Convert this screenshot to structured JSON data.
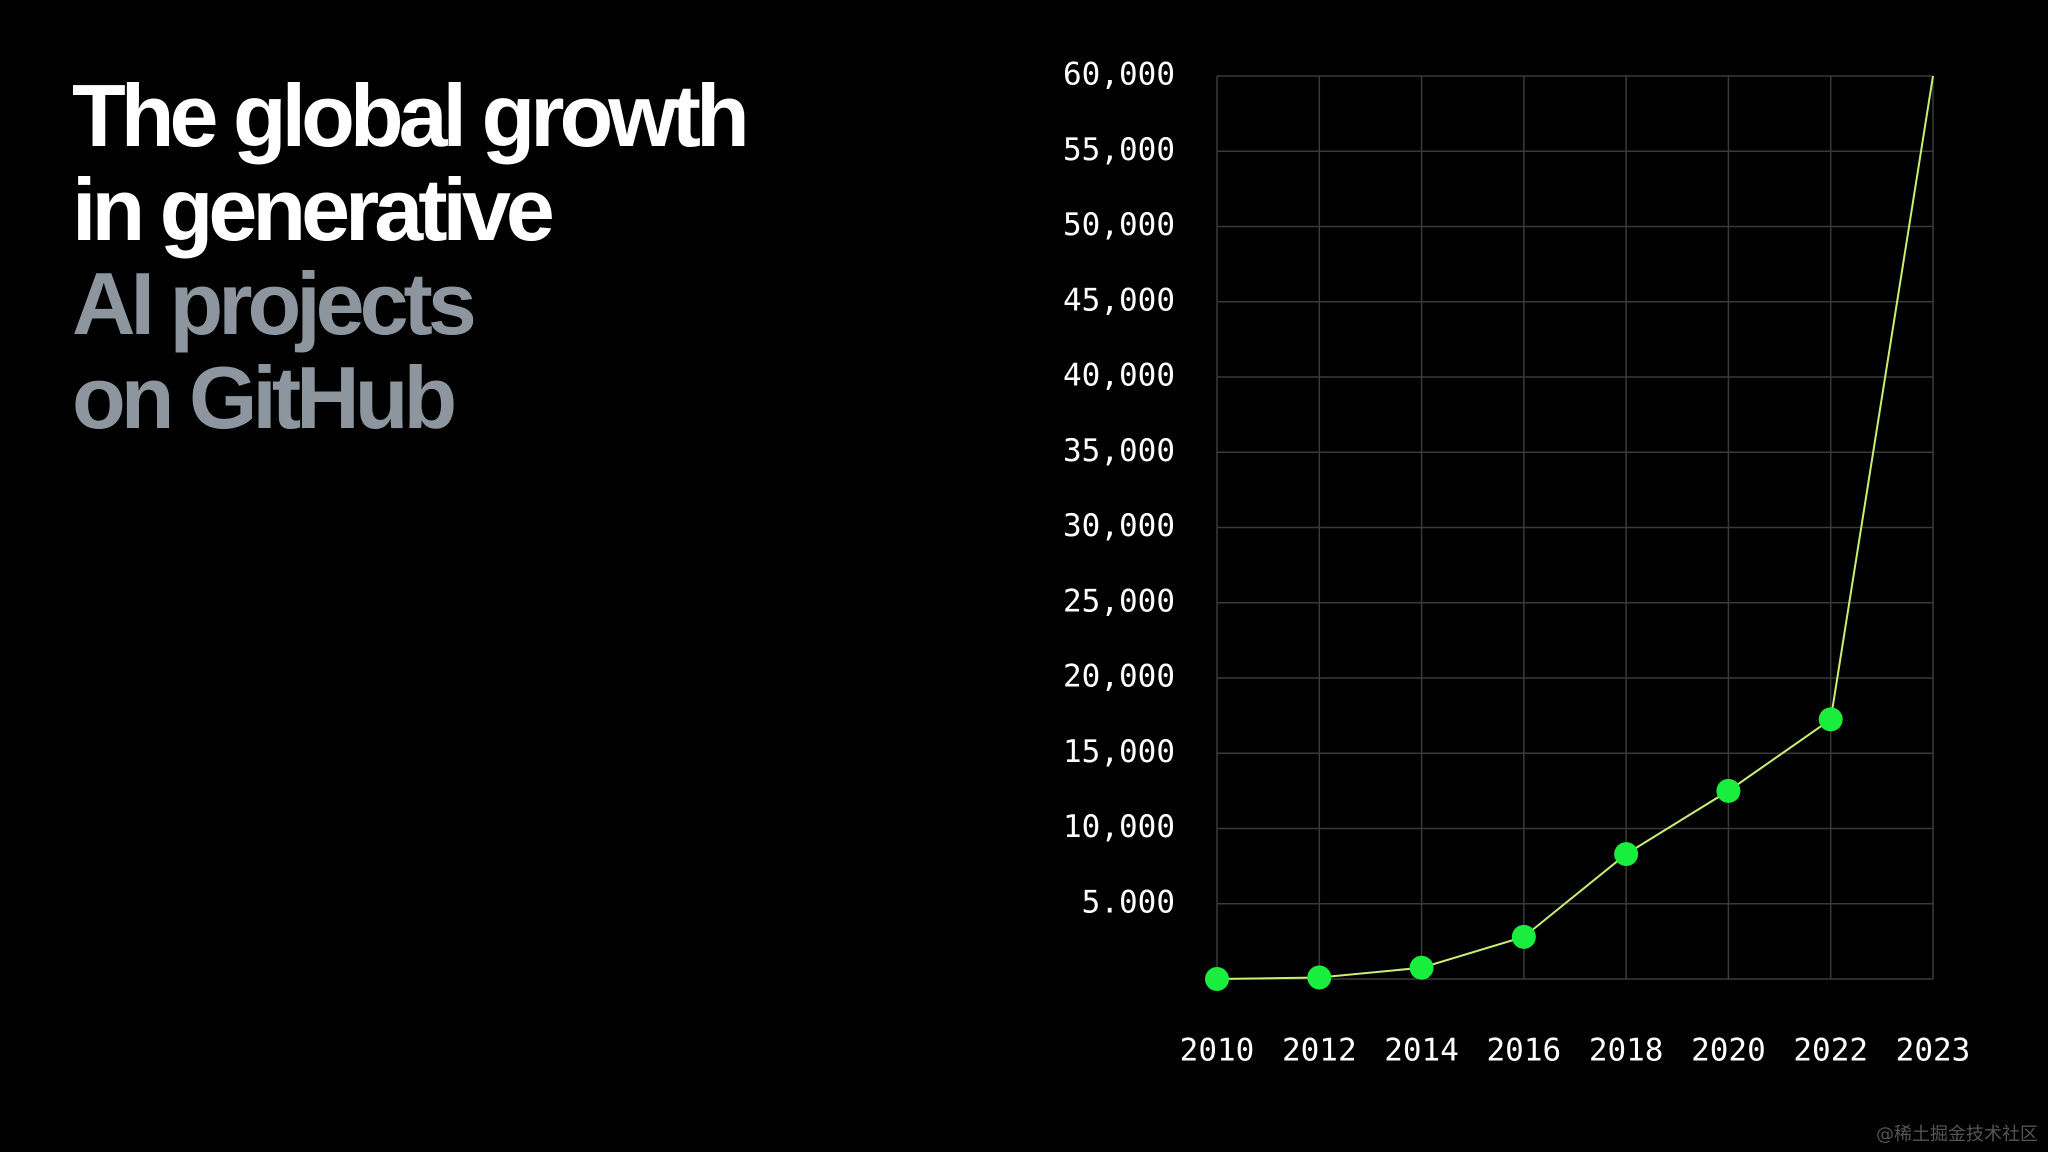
{
  "chart_data": {
    "type": "line",
    "title": [
      "The global growth",
      "in generative"
    ],
    "title_accent": [
      "AI projects",
      "on GitHub"
    ],
    "categories": [
      "2010",
      "2012",
      "2014",
      "2016",
      "2018",
      "2020",
      "2022",
      "2023"
    ],
    "series": [
      {
        "color": "#c9ef72",
        "marker_color": "#19ee3f",
        "values": [
          0,
          100,
          750,
          2800,
          8300,
          12500,
          17250,
          60000
        ]
      }
    ],
    "ylim": [
      0,
      60000
    ],
    "yticks": [
      {
        "value": 5000,
        "label": "5.000"
      },
      {
        "value": 10000,
        "label": "10,000"
      },
      {
        "value": 15000,
        "label": "15,000"
      },
      {
        "value": 20000,
        "label": "20,000"
      },
      {
        "value": 25000,
        "label": "25,000"
      },
      {
        "value": 30000,
        "label": "30,000"
      },
      {
        "value": 35000,
        "label": "35,000"
      },
      {
        "value": 40000,
        "label": "40,000"
      },
      {
        "value": 45000,
        "label": "45,000"
      },
      {
        "value": 50000,
        "label": "50,000"
      },
      {
        "value": 55000,
        "label": "55,000"
      },
      {
        "value": 60000,
        "label": "60,000"
      }
    ],
    "grid": true,
    "watermark": "@稀土掘金技术社区"
  }
}
